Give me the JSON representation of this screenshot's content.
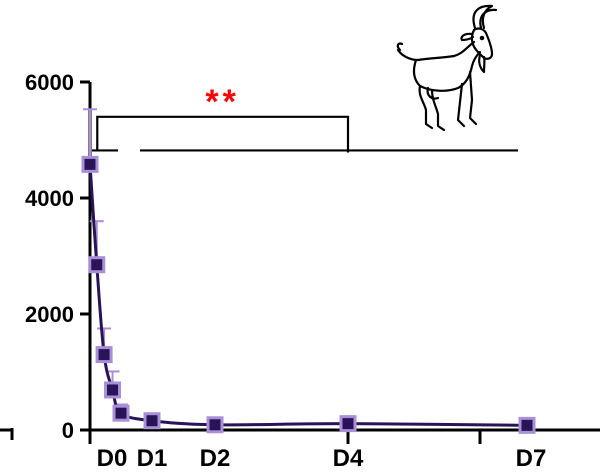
{
  "chart_data": {
    "type": "line",
    "x_unit_note_hidden": false,
    "title": "",
    "xlabel": "",
    "ylabel": "",
    "xlim": [
      -0.3,
      7.9
    ],
    "ylim": [
      0,
      6000
    ],
    "y_ticks": [
      {
        "value": 0,
        "label": "0"
      },
      {
        "value": 2000,
        "label": "2000"
      },
      {
        "value": 4000,
        "label": "4000"
      },
      {
        "value": 6000,
        "label": "6000"
      }
    ],
    "x_ticks": [
      {
        "value": 0,
        "label": "D0"
      },
      {
        "value": 1,
        "label": "D1"
      },
      {
        "value": 2,
        "label": "D2"
      },
      {
        "value": 4,
        "label": "D4"
      },
      {
        "value": 7,
        "label": "D7"
      }
    ],
    "x_major_ticks": [
      0,
      4,
      6.5
    ],
    "series": [
      {
        "color": "#2a1458",
        "marker_fill": "#2a1458",
        "marker_edge": "#a98fd6",
        "errorbar_color": "#a98fd6",
        "points": [
          {
            "x": 0.0,
            "y": 4580,
            "err": 950
          },
          {
            "x": 0.12,
            "y": 2850,
            "err": 750
          },
          {
            "x": 0.25,
            "y": 1300,
            "err": 450
          },
          {
            "x": 0.4,
            "y": 690,
            "err": 320
          },
          {
            "x": 0.55,
            "y": 290,
            "err": 150
          },
          {
            "x": 1.0,
            "y": 160,
            "err": 0
          },
          {
            "x": 2.0,
            "y": 90,
            "err": 0
          },
          {
            "x": 4.0,
            "y": 110,
            "err": 0
          },
          {
            "x": 7.0,
            "y": 80,
            "err": 0
          }
        ]
      }
    ],
    "annotation": {
      "text": "**",
      "color": "#ff0000",
      "bracket_from_x": 0.2,
      "bracket_to_x": 4.0,
      "bracket_y": 5400,
      "baseline_y": 4820,
      "baseline_segments": [
        [
          0.05,
          0.5
        ],
        [
          0.85,
          7.0
        ]
      ]
    },
    "grid": false,
    "legend": "none"
  },
  "icons": {
    "illustration": "goat-icon"
  }
}
